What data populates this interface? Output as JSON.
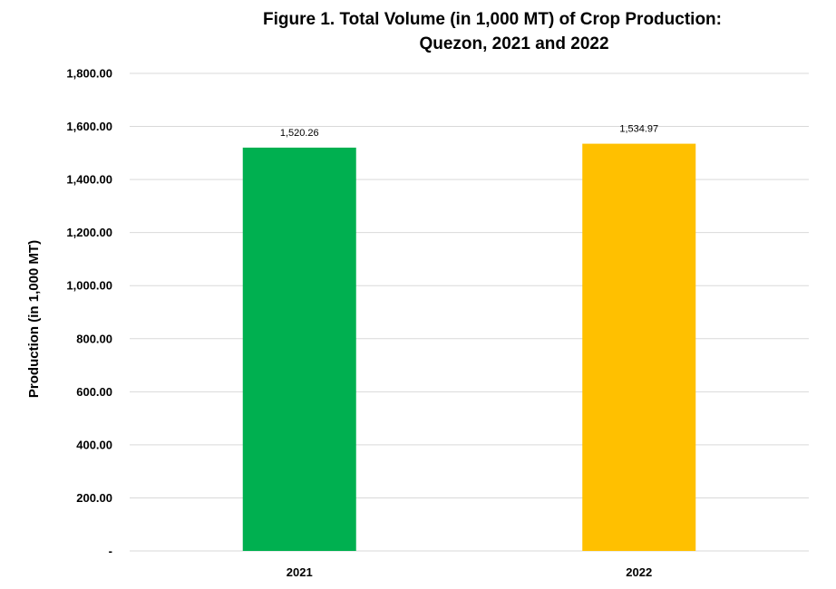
{
  "chart_data": {
    "type": "bar",
    "title": [
      "Figure 1. Total Volume (in 1,000 MT) of Crop Production:",
      "Quezon, 2021 and 2022"
    ],
    "xlabel": "",
    "ylabel": "Production (in 1,000 MT)",
    "categories": [
      "2021",
      "2022"
    ],
    "values": [
      1520.26,
      1534.97
    ],
    "value_labels": [
      "1,520.26",
      "1,534.97"
    ],
    "bar_colors": [
      "#00b050",
      "#ffc000"
    ],
    "ylim": [
      0,
      1800
    ],
    "yticks": [
      0,
      200,
      400,
      600,
      800,
      1000,
      1200,
      1400,
      1600,
      1800
    ],
    "ytick_labels": [
      "-",
      "200.00",
      "400.00",
      "600.00",
      "800.00",
      "1,000.00",
      "1,200.00",
      "1,400.00",
      "1,600.00",
      "1,800.00"
    ],
    "grid": true,
    "legend": false
  }
}
